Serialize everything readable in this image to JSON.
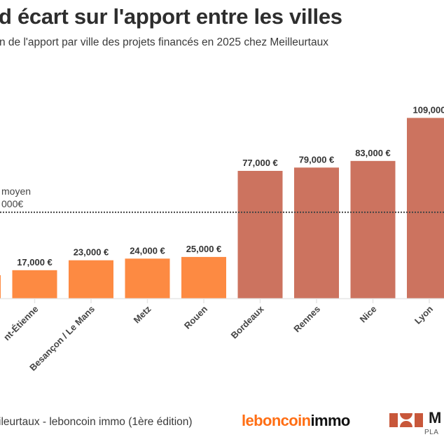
{
  "header": {
    "title": "d écart sur l'apport entre les villes",
    "subtitle": "n de l'apport par ville des projets financés en 2025 chez Meilleurtaux"
  },
  "footer": {
    "source": "ileurtaux - leboncoin immo (1ère édition)",
    "logo_leboncoin_part1": "leboncoin",
    "logo_leboncoin_part2": "immo",
    "logo_meilleurtaux_text": "M",
    "logo_meilleurtaux_sub": "PLA"
  },
  "colors": {
    "low": "#fd8a42",
    "high": "#cc735f",
    "text": "#333333",
    "mean_line": "#444444",
    "axis": "#e6e6e6"
  },
  "chart_data": {
    "type": "bar",
    "title": "d écart sur l'apport entre les villes",
    "subtitle": "n de l'apport par ville des projets financés en 2025 chez Meilleurtaux",
    "xlabel": "",
    "ylabel": "",
    "ylim": [
      0,
      115000
    ],
    "grid": false,
    "categories": [
      "",
      "nt-Étienne",
      "Besançon / Le Mans",
      "Metz",
      "Rouen",
      "Bordeaux",
      "Rennes",
      "Nice",
      "Lyon"
    ],
    "values": [
      14000,
      17000,
      23000,
      24000,
      25000,
      77000,
      79000,
      83000,
      109000
    ],
    "value_labels": [
      "",
      "17,000 €",
      "23,000 €",
      "24,000 €",
      "25,000 €",
      "77,000 €",
      "79,000 €",
      "83,000 €",
      "109,000"
    ],
    "groups": [
      "low",
      "low",
      "low",
      "low",
      "low",
      "high",
      "high",
      "high",
      "high"
    ],
    "mean_line": {
      "value": 52000,
      "label_line1": "moyen",
      "label_line2": "000€"
    }
  }
}
